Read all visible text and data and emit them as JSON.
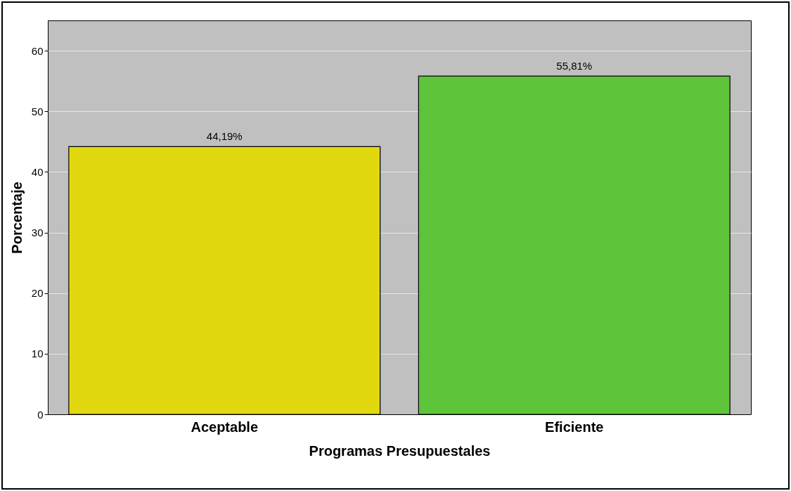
{
  "chart_data": {
    "type": "bar",
    "xlabel": "Programas Presupuestales",
    "ylabel": "Porcentaje",
    "categories": [
      "Aceptable",
      "Eficiente"
    ],
    "values": [
      44.19,
      55.81
    ],
    "colors": [
      "#e2d810",
      "#5ec43a"
    ],
    "value_labels": [
      "44,19%",
      "55,81%"
    ],
    "ylim": [
      0,
      65
    ],
    "yticks": [
      0,
      10,
      20,
      30,
      40,
      50,
      60
    ],
    "grid": "y"
  }
}
